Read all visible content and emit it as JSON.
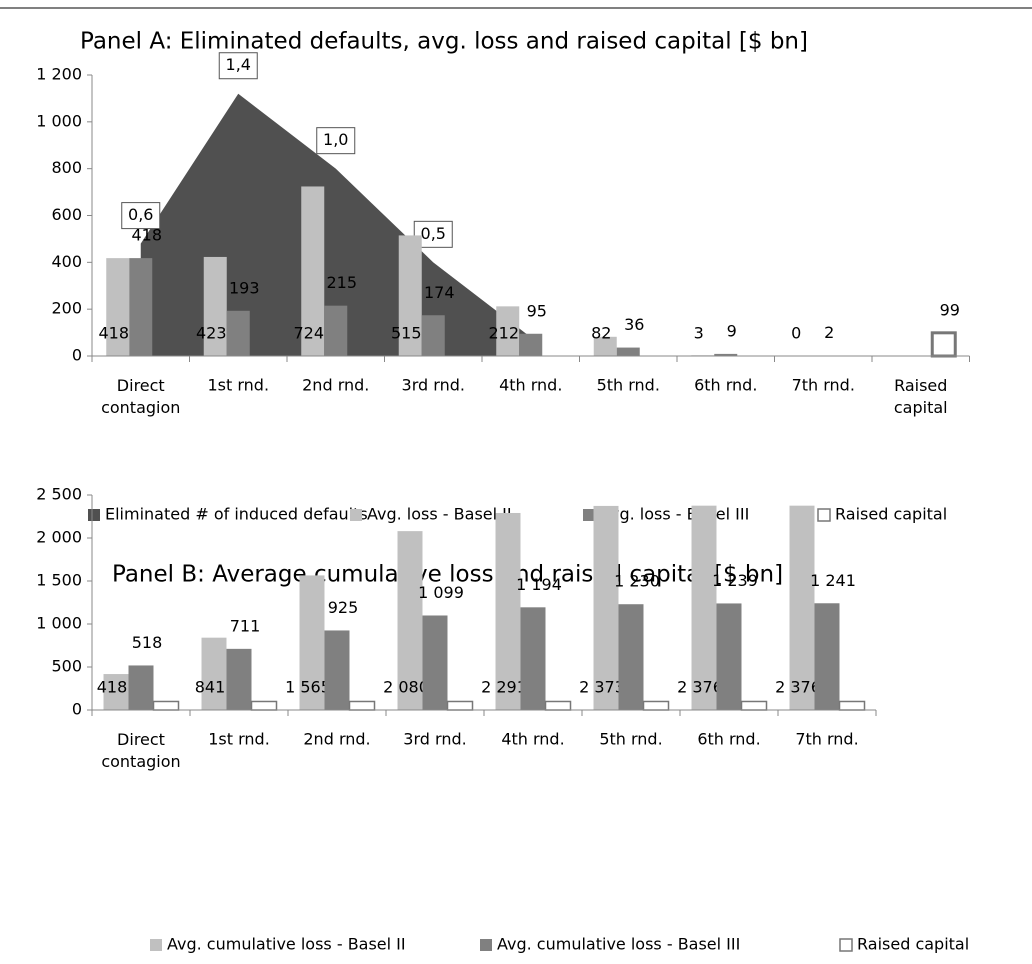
{
  "chart_data": [
    {
      "type": "bar",
      "title": "Panel A: Eliminated defaults, avg. loss and raised capital [$ bn]",
      "categories": [
        "Direct contagion",
        "1st rnd.",
        "2nd rnd.",
        "3rd rnd.",
        "4th rnd.",
        "5th rnd.",
        "6th rnd.",
        "7th rnd.",
        "Raised capital"
      ],
      "ylim": [
        0,
        1200
      ],
      "yticks": [
        0,
        200,
        400,
        600,
        800,
        {
          "value": 1000,
          "label": "1 000"
        },
        {
          "value": 1200,
          "label": "1 200"
        }
      ],
      "y2lim": [
        0,
        1.5
      ],
      "series": [
        {
          "name": "Eliminated # of induced defaults",
          "type": "area",
          "axis": "y2",
          "color": "#505050",
          "values": [
            0.6,
            1.4,
            1.0,
            0.5,
            0.1,
            null,
            null,
            null,
            null
          ],
          "value_labels": [
            "0,6",
            "1,4",
            "1,0",
            "0,5",
            null,
            null,
            null,
            null,
            null
          ]
        },
        {
          "name": "Avg. loss - Basel II",
          "color": "#c0c0c0",
          "label_position": "base",
          "values": [
            418,
            423,
            724,
            515,
            212,
            82,
            3,
            0,
            null
          ]
        },
        {
          "name": "Avg. loss - Basel III",
          "color": "#808080",
          "label_position": "top",
          "values": [
            418,
            193,
            215,
            174,
            95,
            36,
            9,
            2,
            null
          ]
        },
        {
          "name": "Raised capital",
          "color": "#ffffff",
          "edgecolor": "#777777",
          "label_position": "top",
          "values": [
            null,
            null,
            null,
            null,
            null,
            null,
            null,
            null,
            99
          ]
        }
      ]
    },
    {
      "type": "bar",
      "title": "Panel B: Average cumulative loss and raised capital [$ bn]",
      "categories": [
        "Direct contagion",
        "1st rnd.",
        "2nd rnd.",
        "3rd rnd.",
        "4th rnd.",
        "5th rnd.",
        "6th rnd.",
        "7th rnd."
      ],
      "ylim": [
        0,
        2500
      ],
      "yticks": [
        0,
        500,
        {
          "value": 1000,
          "label": "1 000"
        },
        {
          "value": 1500,
          "label": "1 500"
        },
        {
          "value": 2000,
          "label": "2 000"
        },
        {
          "value": 2500,
          "label": "2 500"
        }
      ],
      "series": [
        {
          "name": "Avg. cumulative loss - Basel II",
          "color": "#c0c0c0",
          "label_position": "base",
          "values": [
            418,
            841,
            1565,
            2080,
            2291,
            2373,
            2376,
            2376
          ],
          "value_labels": [
            "418",
            "841",
            "1 565",
            "2 080",
            "2 291",
            "2 373",
            "2 376",
            "2 376"
          ]
        },
        {
          "name": "Avg. cumulative loss - Basel III",
          "color": "#808080",
          "label_position": "top",
          "values": [
            518,
            711,
            925,
            1099,
            1194,
            1230,
            1239,
            1241
          ],
          "value_labels": [
            "518",
            "711",
            "925",
            "1 099",
            "1 194",
            "1 230",
            "1 239",
            "1 241"
          ]
        },
        {
          "name": "Raised capital",
          "color": "#ffffff",
          "edgecolor": "#777777",
          "values": [
            99,
            99,
            99,
            99,
            99,
            99,
            99,
            99
          ]
        }
      ]
    }
  ]
}
